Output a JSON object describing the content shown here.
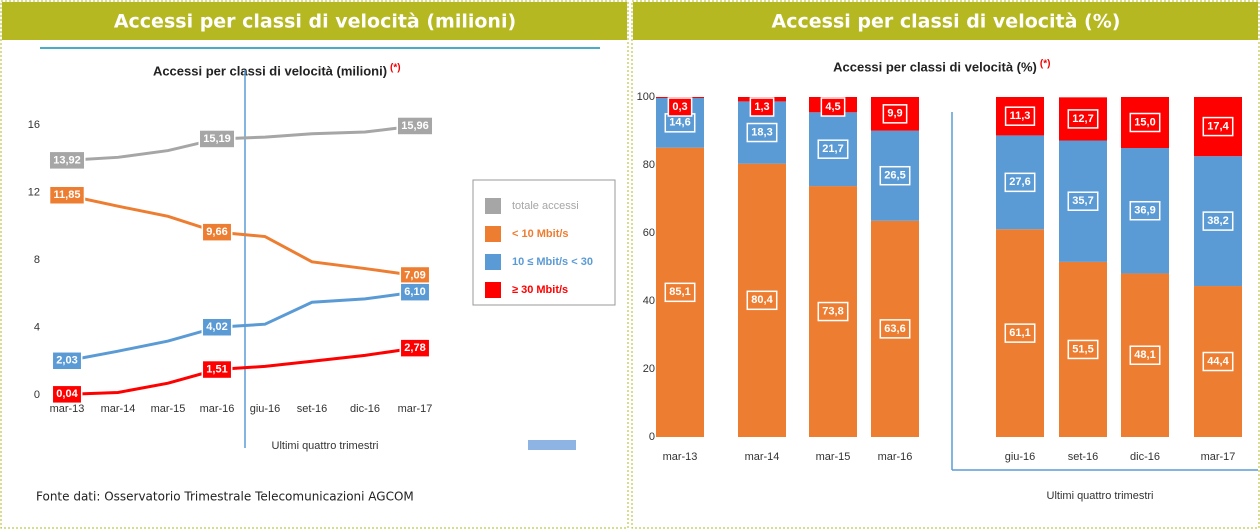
{
  "headers": [
    "Accessi per classi di velocità (milioni)",
    "Accessi per classi di velocità (%)"
  ],
  "source": "Fonte dati: Osservatorio Trimestrale Telecomunicazioni AGCOM",
  "chart_data": [
    {
      "type": "line",
      "title": "Accessi per classi di velocità (milioni)",
      "title_note": "(*)",
      "categories": [
        "mar-13",
        "mar-14",
        "mar-15",
        "mar-16",
        "giu-16",
        "set-16",
        "dic-16",
        "mar-17"
      ],
      "series": [
        {
          "name": "totale accessi",
          "color": "#a6a6a6",
          "values": [
            13.92,
            14.1,
            14.5,
            15.19,
            15.3,
            15.5,
            15.6,
            15.96
          ],
          "value_labels": [
            "13,92",
            null,
            null,
            "15,19",
            null,
            null,
            null,
            "15,96"
          ]
        },
        {
          "name": "< 10 Mbit/s",
          "color": "#ed7d31",
          "values": [
            11.85,
            11.2,
            10.6,
            9.66,
            9.4,
            7.9,
            7.5,
            7.09
          ],
          "value_labels": [
            "11,85",
            null,
            null,
            "9,66",
            null,
            null,
            null,
            "7,09"
          ]
        },
        {
          "name": "10 ≤ Mbit/s < 30",
          "color": "#5b9bd5",
          "values": [
            2.03,
            2.6,
            3.2,
            4.02,
            4.2,
            5.5,
            5.7,
            6.1
          ],
          "value_labels": [
            "2,03",
            null,
            null,
            "4,02",
            null,
            null,
            null,
            "6,10"
          ]
        },
        {
          "name": "≥ 30 Mbit/s",
          "color": "#ff0000",
          "values": [
            0.04,
            0.15,
            0.7,
            1.51,
            1.7,
            2.0,
            2.35,
            2.78
          ],
          "value_labels": [
            "0,04",
            null,
            null,
            "1,51",
            null,
            null,
            null,
            "2,78"
          ]
        }
      ],
      "ylim": [
        0,
        17.5
      ],
      "yticks": [
        0,
        4,
        8,
        12,
        16
      ],
      "legend": "right",
      "annotation": "Ultimi quattro trimestri"
    },
    {
      "type": "stacked-bar",
      "title": "Accessi per classi di velocità (%)",
      "title_note": "(*)",
      "categories": [
        "mar-13",
        "mar-14",
        "mar-15",
        "mar-16",
        "giu-16",
        "set-16",
        "dic-16",
        "mar-17"
      ],
      "series": [
        {
          "color": "#ed7d31",
          "values": [
            85.1,
            80.4,
            73.8,
            63.6,
            61.1,
            51.5,
            48.1,
            44.4
          ],
          "value_labels": [
            "85,1",
            "80,4",
            "73,8",
            "63,6",
            "61,1",
            "51,5",
            "48,1",
            "44,4"
          ]
        },
        {
          "color": "#5b9bd5",
          "values": [
            14.6,
            18.3,
            21.7,
            26.5,
            27.6,
            35.7,
            36.9,
            38.2
          ],
          "value_labels": [
            "14,6",
            "18,3",
            "21,7",
            "26,5",
            "27,6",
            "35,7",
            "36,9",
            "38,2"
          ]
        },
        {
          "color": "#ff0000",
          "values": [
            0.3,
            1.3,
            4.5,
            9.9,
            11.3,
            12.7,
            15.0,
            17.4
          ],
          "value_labels": [
            "0,3",
            "1,3",
            "4,5",
            "9,9",
            "11,3",
            "12,7",
            "15,0",
            "17,4"
          ]
        }
      ],
      "ylim": [
        0,
        100
      ],
      "yticks": [
        0,
        20,
        40,
        60,
        80,
        100
      ],
      "annotation": "Ultimi quattro trimestri"
    }
  ]
}
